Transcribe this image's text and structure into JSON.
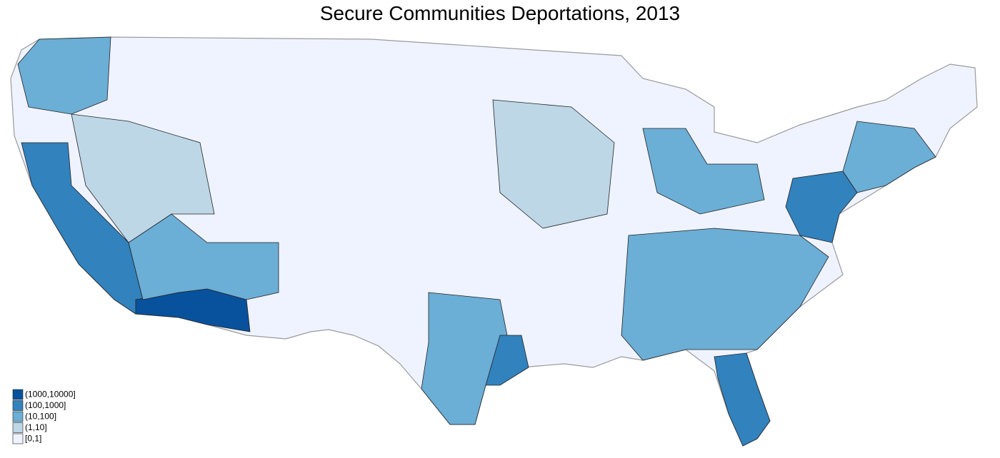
{
  "title": "Secure Communities Deportations, 2013",
  "legend": {
    "items": [
      {
        "label": "(1000,10000]",
        "color": "#08519c"
      },
      {
        "label": "(100,1000]",
        "color": "#3182bd"
      },
      {
        "label": "(10,100]",
        "color": "#6baed6"
      },
      {
        "label": "(1,10]",
        "color": "#bdd7e7"
      },
      {
        "label": "[0,1]",
        "color": "#eff3ff"
      }
    ]
  }
}
